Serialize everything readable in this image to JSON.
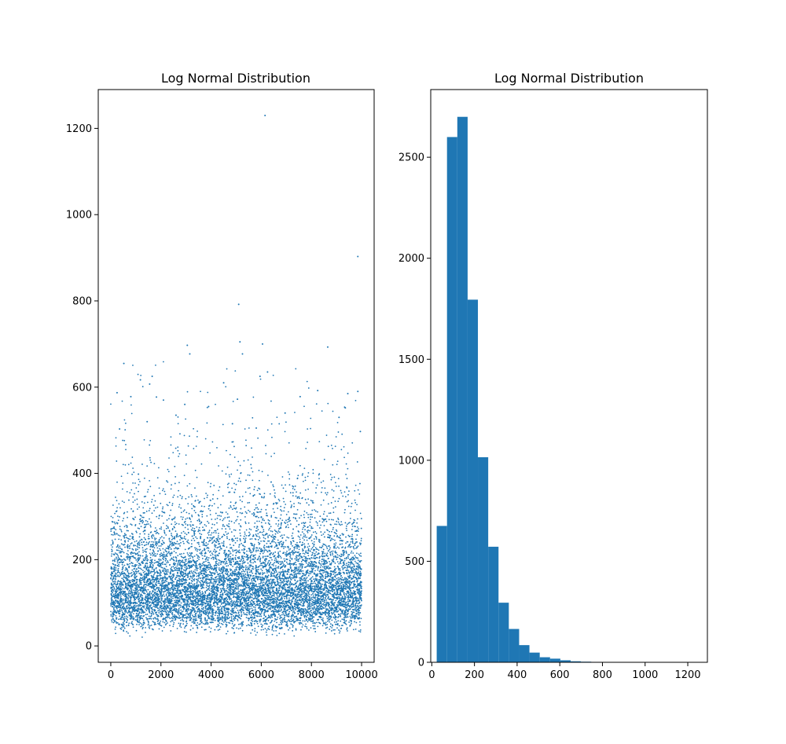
{
  "chart_data": [
    {
      "type": "scatter",
      "title": "Log Normal Distribution",
      "xlabel": "",
      "ylabel": "",
      "xlim": [
        -500,
        10500
      ],
      "ylim": [
        -38,
        1290
      ],
      "x_ticks": [
        0,
        2000,
        4000,
        6000,
        8000,
        10000
      ],
      "y_ticks": [
        0,
        200,
        400,
        600,
        800,
        1000,
        1200
      ],
      "n_points": 10000,
      "color": "#1f77b4",
      "marker_size": 1.5,
      "distribution_note": "dense band 50-250, sparse tail to 700",
      "notable_points": [
        {
          "x": 6150,
          "y": 1230
        },
        {
          "x": 9850,
          "y": 903
        },
        {
          "x": 5100,
          "y": 792
        },
        {
          "x": 5150,
          "y": 705
        },
        {
          "x": 6050,
          "y": 700
        },
        {
          "x": 3050,
          "y": 697
        },
        {
          "x": 8650,
          "y": 693
        },
        {
          "x": 3150,
          "y": 677
        },
        {
          "x": 5250,
          "y": 677
        },
        {
          "x": 520,
          "y": 655
        },
        {
          "x": 6250,
          "y": 635
        },
        {
          "x": 1650,
          "y": 625
        },
        {
          "x": 5950,
          "y": 625
        },
        {
          "x": 1180,
          "y": 617
        },
        {
          "x": 1550,
          "y": 607
        },
        {
          "x": 4500,
          "y": 610
        },
        {
          "x": 8250,
          "y": 592
        },
        {
          "x": 9850,
          "y": 590
        },
        {
          "x": 250,
          "y": 587
        },
        {
          "x": 9450,
          "y": 585
        },
        {
          "x": 800,
          "y": 578
        },
        {
          "x": 7550,
          "y": 578
        },
        {
          "x": 1820,
          "y": 577
        },
        {
          "x": 5050,
          "y": 572
        },
        {
          "x": 2100,
          "y": 570
        },
        {
          "x": 2950,
          "y": 560
        },
        {
          "x": 3900,
          "y": 555
        },
        {
          "x": 9350,
          "y": 552
        },
        {
          "x": 6950,
          "y": 540
        },
        {
          "x": 9100,
          "y": 530
        },
        {
          "x": 350,
          "y": 503
        },
        {
          "x": 9950,
          "y": 497
        },
        {
          "x": 5800,
          "y": 505
        },
        {
          "x": 2600,
          "y": 535
        },
        {
          "x": 1450,
          "y": 520
        },
        {
          "x": 4850,
          "y": 515
        }
      ]
    },
    {
      "type": "bar",
      "title": "Log Normal Distribution",
      "xlabel": "",
      "ylabel": "",
      "xlim": [
        -5,
        1292
      ],
      "ylim": [
        0,
        2835
      ],
      "x_ticks": [
        0,
        200,
        400,
        600,
        800,
        1000,
        1200
      ],
      "y_ticks": [
        0,
        500,
        1000,
        1500,
        2000,
        2500
      ],
      "bin_start": 23,
      "bin_width": 48.3,
      "color": "#1f77b4",
      "values": [
        675,
        2600,
        2700,
        1795,
        1015,
        572,
        295,
        165,
        85,
        48,
        25,
        18,
        10,
        5,
        3,
        2,
        1,
        1,
        1,
        1,
        0,
        0,
        0,
        0,
        1
      ]
    }
  ]
}
